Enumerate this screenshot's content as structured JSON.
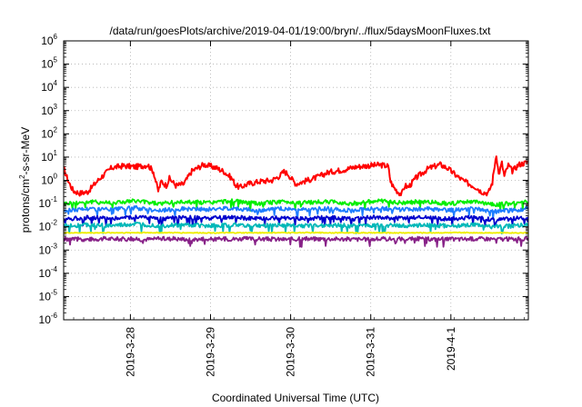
{
  "chart_data": {
    "type": "line",
    "title": "/data/run/goesPlots/archive/2019-04-01/19:00/bryn/../flux/5daysMoonFluxes.txt",
    "xlabel": "Coordinated Universal Time (UTC)",
    "ylabel": {
      "prefix": "protons/cm",
      "superscript": "2",
      "suffix": "-s-sr-MeV"
    },
    "y_scale": "log",
    "ylim_exponents": [
      -6,
      6
    ],
    "y_ticks": [
      {
        "base": "10",
        "exp": "6"
      },
      {
        "base": "10",
        "exp": "5"
      },
      {
        "base": "10",
        "exp": "4"
      },
      {
        "base": "10",
        "exp": "3"
      },
      {
        "base": "10",
        "exp": "2"
      },
      {
        "base": "10",
        "exp": "1"
      },
      {
        "base": "10",
        "exp": "0"
      },
      {
        "base": "10",
        "exp": "-1"
      },
      {
        "base": "10",
        "exp": "-2"
      },
      {
        "base": "10",
        "exp": "-3"
      },
      {
        "base": "10",
        "exp": "-4"
      },
      {
        "base": "10",
        "exp": "-5"
      },
      {
        "base": "10",
        "exp": "-6"
      }
    ],
    "x_unit": "day",
    "x_start": "2019-03-27T04:00",
    "xlim_days": [
      0,
      5.8
    ],
    "x_ticks": [
      {
        "label": "2019-3-28",
        "day": 0.833
      },
      {
        "label": "2019-3-29",
        "day": 1.833
      },
      {
        "label": "2019-3-30",
        "day": 2.833
      },
      {
        "label": "2019-3-31",
        "day": 3.833
      },
      {
        "label": "2019-4-1",
        "day": 4.833
      }
    ],
    "grid": true,
    "series": [
      {
        "color": "#ff0000",
        "points": [
          [
            0,
            3.2
          ],
          [
            0.06,
            0.9
          ],
          [
            0.12,
            0.35
          ],
          [
            0.2,
            0.28
          ],
          [
            0.3,
            0.32
          ],
          [
            0.45,
            1.2
          ],
          [
            0.6,
            3.5
          ],
          [
            0.75,
            4.2
          ],
          [
            0.9,
            3.8
          ],
          [
            1.05,
            4.6
          ],
          [
            1.12,
            2.4
          ],
          [
            1.18,
            0.35
          ],
          [
            1.22,
            0.9
          ],
          [
            1.28,
            0.6
          ],
          [
            1.32,
            1.2
          ],
          [
            1.4,
            0.6
          ],
          [
            1.5,
            0.7
          ],
          [
            1.6,
            2.5
          ],
          [
            1.75,
            4.8
          ],
          [
            1.9,
            3.5
          ],
          [
            2.0,
            2.4
          ],
          [
            2.1,
            1.2
          ],
          [
            2.15,
            0.6
          ],
          [
            2.2,
            0.5
          ],
          [
            2.3,
            0.7
          ],
          [
            2.45,
            0.9
          ],
          [
            2.6,
            1.0
          ],
          [
            2.7,
            1.6
          ],
          [
            2.75,
            2.4
          ],
          [
            2.8,
            1.9
          ],
          [
            2.85,
            1.1
          ],
          [
            2.9,
            0.7
          ],
          [
            2.95,
            0.8
          ],
          [
            3.0,
            0.9
          ],
          [
            3.15,
            1.3
          ],
          [
            3.3,
            2.2
          ],
          [
            3.5,
            2.9
          ],
          [
            3.65,
            3.8
          ],
          [
            3.8,
            4.3
          ],
          [
            3.95,
            4.6
          ],
          [
            4.05,
            4.1
          ],
          [
            4.08,
            0.9
          ],
          [
            4.12,
            0.5
          ],
          [
            4.18,
            0.3
          ],
          [
            4.22,
            0.26
          ],
          [
            4.26,
            0.6
          ],
          [
            4.3,
            0.5
          ],
          [
            4.4,
            1.3
          ],
          [
            4.55,
            3.2
          ],
          [
            4.7,
            4.8
          ],
          [
            4.8,
            3.2
          ],
          [
            4.9,
            1.6
          ],
          [
            5.0,
            0.9
          ],
          [
            5.1,
            0.6
          ],
          [
            5.15,
            0.5
          ],
          [
            5.2,
            0.35
          ],
          [
            5.25,
            0.3
          ],
          [
            5.3,
            0.28
          ],
          [
            5.35,
            0.8
          ],
          [
            5.4,
            14
          ],
          [
            5.43,
            1.8
          ],
          [
            5.47,
            5.5
          ],
          [
            5.5,
            1.5
          ],
          [
            5.55,
            4.5
          ],
          [
            5.6,
            2.5
          ],
          [
            5.68,
            4.8
          ],
          [
            5.75,
            5.5
          ],
          [
            5.8,
            6.5
          ]
        ]
      },
      {
        "color": "#00ee00",
        "points": [
          [
            0,
            0.1
          ],
          [
            0.3,
            0.12
          ],
          [
            0.6,
            0.11
          ],
          [
            0.9,
            0.13
          ],
          [
            1.2,
            0.1
          ],
          [
            1.5,
            0.12
          ],
          [
            1.8,
            0.11
          ],
          [
            2.1,
            0.13
          ],
          [
            2.4,
            0.1
          ],
          [
            2.7,
            0.12
          ],
          [
            3.0,
            0.11
          ],
          [
            3.3,
            0.12
          ],
          [
            3.6,
            0.1
          ],
          [
            3.9,
            0.13
          ],
          [
            4.2,
            0.11
          ],
          [
            4.5,
            0.12
          ],
          [
            4.8,
            0.1
          ],
          [
            5.1,
            0.12
          ],
          [
            5.4,
            0.09
          ],
          [
            5.8,
            0.12
          ]
        ]
      },
      {
        "color": "#1e7dff",
        "points": [
          [
            0,
            0.05
          ],
          [
            0.3,
            0.06
          ],
          [
            0.6,
            0.055
          ],
          [
            0.9,
            0.065
          ],
          [
            1.2,
            0.05
          ],
          [
            1.5,
            0.06
          ],
          [
            1.8,
            0.055
          ],
          [
            2.1,
            0.065
          ],
          [
            2.4,
            0.05
          ],
          [
            2.7,
            0.06
          ],
          [
            3.0,
            0.055
          ],
          [
            3.3,
            0.06
          ],
          [
            3.6,
            0.05
          ],
          [
            3.9,
            0.065
          ],
          [
            4.2,
            0.055
          ],
          [
            4.5,
            0.06
          ],
          [
            4.8,
            0.05
          ],
          [
            5.1,
            0.06
          ],
          [
            5.4,
            0.045
          ],
          [
            5.8,
            0.06
          ]
        ]
      },
      {
        "color": "#0000cc",
        "points": [
          [
            0,
            0.022
          ],
          [
            0.3,
            0.025
          ],
          [
            0.6,
            0.023
          ],
          [
            0.9,
            0.027
          ],
          [
            1.2,
            0.022
          ],
          [
            1.5,
            0.025
          ],
          [
            1.8,
            0.023
          ],
          [
            2.1,
            0.026
          ],
          [
            2.4,
            0.022
          ],
          [
            2.7,
            0.025
          ],
          [
            3.0,
            0.023
          ],
          [
            3.3,
            0.025
          ],
          [
            3.6,
            0.022
          ],
          [
            3.9,
            0.026
          ],
          [
            4.2,
            0.023
          ],
          [
            4.5,
            0.025
          ],
          [
            4.8,
            0.022
          ],
          [
            5.1,
            0.025
          ],
          [
            5.4,
            0.02
          ],
          [
            5.8,
            0.025
          ]
        ]
      },
      {
        "color": "#00b8b8",
        "points": [
          [
            0,
            0.011
          ],
          [
            0.3,
            0.012
          ],
          [
            0.6,
            0.011
          ],
          [
            0.9,
            0.013
          ],
          [
            1.2,
            0.011
          ],
          [
            1.5,
            0.012
          ],
          [
            1.8,
            0.011
          ],
          [
            2.1,
            0.012
          ],
          [
            2.4,
            0.011
          ],
          [
            2.7,
            0.012
          ],
          [
            3.0,
            0.011
          ],
          [
            3.3,
            0.012
          ],
          [
            3.6,
            0.011
          ],
          [
            3.9,
            0.012
          ],
          [
            4.2,
            0.011
          ],
          [
            4.5,
            0.012
          ],
          [
            4.8,
            0.011
          ],
          [
            5.1,
            0.012
          ],
          [
            5.4,
            0.01
          ],
          [
            5.8,
            0.012
          ]
        ]
      },
      {
        "color": "#eeee00",
        "points": [
          [
            0,
            0.0055
          ],
          [
            1.0,
            0.0056
          ],
          [
            2.0,
            0.0055
          ],
          [
            3.0,
            0.0056
          ],
          [
            4.0,
            0.0055
          ],
          [
            5.0,
            0.0056
          ],
          [
            5.8,
            0.0055
          ]
        ]
      },
      {
        "color": "#882288",
        "points": [
          [
            0,
            0.003
          ],
          [
            0.25,
            0.0029
          ],
          [
            0.5,
            0.0031
          ],
          [
            0.75,
            0.003
          ],
          [
            1.0,
            0.0029
          ],
          [
            1.25,
            0.0031
          ],
          [
            1.5,
            0.003
          ],
          [
            1.75,
            0.0029
          ],
          [
            2.0,
            0.003
          ],
          [
            2.25,
            0.0031
          ],
          [
            2.5,
            0.003
          ],
          [
            2.75,
            0.0029
          ],
          [
            3.0,
            0.003
          ],
          [
            3.25,
            0.0031
          ],
          [
            3.5,
            0.003
          ],
          [
            3.75,
            0.0029
          ],
          [
            4.0,
            0.003
          ],
          [
            4.25,
            0.0031
          ],
          [
            4.5,
            0.003
          ],
          [
            4.75,
            0.0029
          ],
          [
            5.0,
            0.003
          ],
          [
            5.25,
            0.0031
          ],
          [
            5.5,
            0.003
          ],
          [
            5.8,
            0.003
          ]
        ]
      }
    ]
  }
}
